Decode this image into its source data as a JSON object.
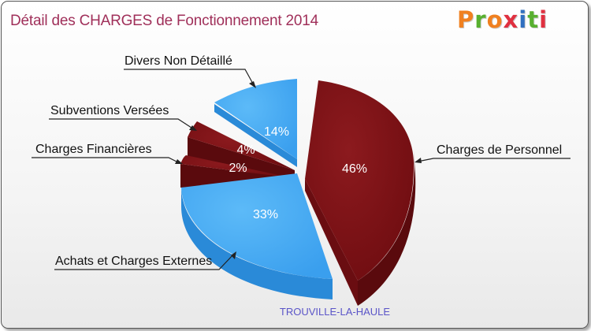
{
  "title": "Détail des CHARGES de Fonctionnement 2014",
  "logo": {
    "letters": [
      "P",
      "r",
      "o",
      "x",
      "i",
      "t",
      "i"
    ],
    "colors": [
      "#f08020",
      "#58b030",
      "#f08020",
      "#e03040",
      "#3070c0",
      "#58b030",
      "#e03040"
    ]
  },
  "colors": {
    "title": "#a0305a",
    "personnel_top": "#7d1014",
    "personnel_side": "#5a0a0d",
    "blue_top": "#44aaf2",
    "blue_side": "#2a8ad8",
    "city": "#5b55c8"
  },
  "chart_data": {
    "type": "pie",
    "title": "Détail des CHARGES de Fonctionnement 2014",
    "subtitle": "TROUVILLE-LA-HAULE",
    "slices": [
      {
        "label": "Charges de Personnel",
        "value": 46,
        "pct_label": "46%",
        "color": "#7d1014"
      },
      {
        "label": "Achats et Charges Externes",
        "value": 33,
        "pct_label": "33%",
        "color": "#44aaf2"
      },
      {
        "label": "Charges Financières",
        "value": 2,
        "pct_label": "2%",
        "color": "#7d1014"
      },
      {
        "label": "Subventions Versées",
        "value": 4,
        "pct_label": "4%",
        "color": "#7d1014"
      },
      {
        "label": "Divers Non Détaillé",
        "value": 14,
        "pct_label": "14%",
        "color": "#44aaf2"
      }
    ]
  }
}
